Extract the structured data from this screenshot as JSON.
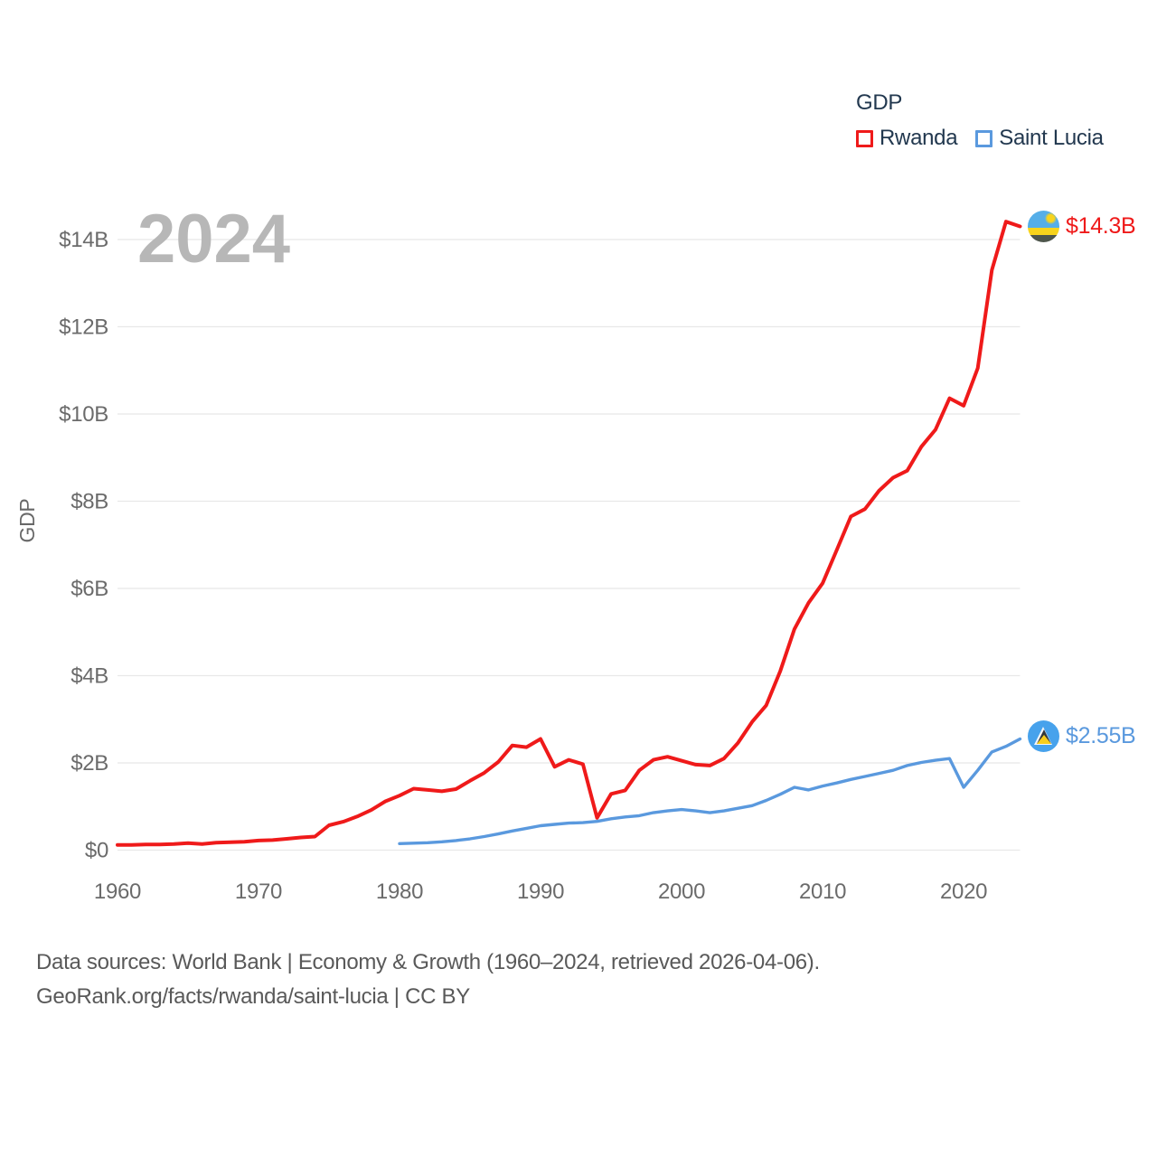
{
  "watermark": "2024",
  "legend": {
    "title": "GDP",
    "series": [
      {
        "label": "Rwanda",
        "color": "#ef1a1a"
      },
      {
        "label": "Saint Lucia",
        "color": "#5a99de"
      }
    ]
  },
  "axis": {
    "y_title": "GDP"
  },
  "end_labels": [
    {
      "series": "Rwanda",
      "value": "$14.3B",
      "flag": "rwanda-flag"
    },
    {
      "series": "Saint Lucia",
      "value": "$2.55B",
      "flag": "saint-lucia-flag"
    }
  ],
  "footer": {
    "line1": "Data sources: World Bank | Economy & Growth (1960–2024, retrieved 2026-04-06).",
    "line2": "GeoRank.org/facts/rwanda/saint-lucia | CC BY"
  },
  "chart_data": {
    "type": "line",
    "title": "GDP",
    "ylabel": "GDP",
    "x_range": [
      1960,
      2024
    ],
    "ylim_billions": [
      0,
      14
    ],
    "grid": true,
    "legend_position": "top-right",
    "y_ticks": [
      {
        "value": 0,
        "label": "$0"
      },
      {
        "value": 2,
        "label": "$2B"
      },
      {
        "value": 4,
        "label": "$4B"
      },
      {
        "value": 6,
        "label": "$6B"
      },
      {
        "value": 8,
        "label": "$8B"
      },
      {
        "value": 10,
        "label": "$10B"
      },
      {
        "value": 12,
        "label": "$12B"
      },
      {
        "value": 14,
        "label": "$14B"
      }
    ],
    "x_ticks": [
      {
        "value": 1960,
        "label": "1960"
      },
      {
        "value": 1970,
        "label": "1970"
      },
      {
        "value": 1980,
        "label": "1980"
      },
      {
        "value": 1990,
        "label": "1990"
      },
      {
        "value": 2000,
        "label": "2000"
      },
      {
        "value": 2010,
        "label": "2010"
      },
      {
        "value": 2020,
        "label": "2020"
      }
    ],
    "series": [
      {
        "name": "Rwanda",
        "color": "#ef1a1a",
        "stroke_width": 4,
        "end_label": "$14.3B",
        "start_year": 1960,
        "values_billions": [
          0.12,
          0.12,
          0.13,
          0.13,
          0.14,
          0.16,
          0.14,
          0.17,
          0.18,
          0.19,
          0.22,
          0.23,
          0.26,
          0.29,
          0.31,
          0.57,
          0.65,
          0.77,
          0.92,
          1.12,
          1.25,
          1.41,
          1.38,
          1.35,
          1.4,
          1.59,
          1.77,
          2.02,
          2.4,
          2.36,
          2.55,
          1.91,
          2.07,
          1.97,
          0.74,
          1.29,
          1.37,
          1.83,
          2.07,
          2.14,
          2.05,
          1.96,
          1.94,
          2.1,
          2.46,
          2.94,
          3.32,
          4.11,
          5.07,
          5.67,
          6.12,
          6.88,
          7.65,
          7.82,
          8.24,
          8.54,
          8.7,
          9.25,
          9.64,
          10.36,
          10.19,
          11.05,
          13.3,
          14.41,
          14.3
        ]
      },
      {
        "name": "Saint Lucia",
        "color": "#5a99de",
        "stroke_width": 3.4,
        "end_label": "$2.55B",
        "start_year": 1980,
        "values_billions": [
          0.15,
          0.16,
          0.17,
          0.19,
          0.22,
          0.26,
          0.31,
          0.37,
          0.44,
          0.5,
          0.56,
          0.59,
          0.62,
          0.63,
          0.66,
          0.72,
          0.76,
          0.79,
          0.86,
          0.9,
          0.93,
          0.9,
          0.86,
          0.9,
          0.96,
          1.02,
          1.14,
          1.28,
          1.44,
          1.38,
          1.47,
          1.54,
          1.62,
          1.69,
          1.76,
          1.83,
          1.94,
          2.01,
          2.06,
          2.1,
          1.44,
          1.83,
          2.25,
          2.38,
          2.55
        ]
      }
    ]
  }
}
